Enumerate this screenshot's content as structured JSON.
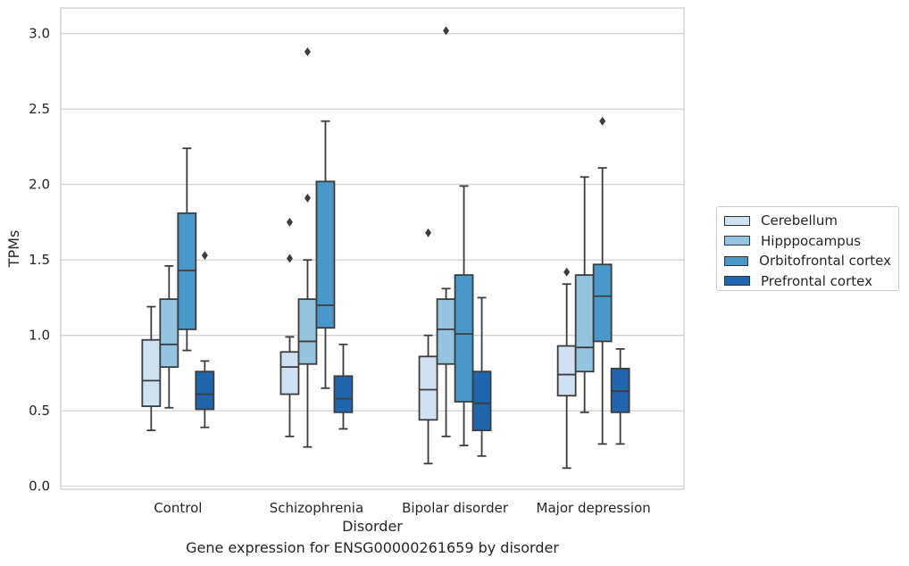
{
  "chart_data": {
    "type": "box",
    "title": "",
    "caption": "Gene expression for ENSG00000261659 by disorder",
    "xlabel": "Disorder",
    "ylabel": "TPMs",
    "ylim": [
      -0.02,
      3.17
    ],
    "yticks": [
      0.0,
      0.5,
      1.0,
      1.5,
      2.0,
      2.5,
      3.0
    ],
    "ytick_labels": [
      "0.0",
      "0.5",
      "1.0",
      "1.5",
      "2.0",
      "2.5",
      "3.0"
    ],
    "categories": [
      "Control",
      "Schizophrenia",
      "Bipolar disorder",
      "Major depression"
    ],
    "grid": "horizontal",
    "legend_position": "right",
    "series": [
      {
        "name": "Cerebellum",
        "color": "#d0e1f2",
        "boxes": [
          {
            "whisker_low": 0.37,
            "q1": 0.53,
            "median": 0.7,
            "q3": 0.97,
            "whisker_high": 1.19,
            "outliers": []
          },
          {
            "whisker_low": 0.33,
            "q1": 0.61,
            "median": 0.79,
            "q3": 0.89,
            "whisker_high": 0.99,
            "outliers": [
              1.51,
              1.75
            ]
          },
          {
            "whisker_low": 0.15,
            "q1": 0.44,
            "median": 0.64,
            "q3": 0.86,
            "whisker_high": 1.0,
            "outliers": [
              1.68
            ]
          },
          {
            "whisker_low": 0.12,
            "q1": 0.6,
            "median": 0.74,
            "q3": 0.93,
            "whisker_high": 1.34,
            "outliers": [
              1.42
            ]
          }
        ]
      },
      {
        "name": "Hipppocampus",
        "color": "#94c4df",
        "boxes": [
          {
            "whisker_low": 0.52,
            "q1": 0.79,
            "median": 0.94,
            "q3": 1.24,
            "whisker_high": 1.46,
            "outliers": []
          },
          {
            "whisker_low": 0.26,
            "q1": 0.81,
            "median": 0.96,
            "q3": 1.24,
            "whisker_high": 1.5,
            "outliers": [
              1.91,
              2.88
            ]
          },
          {
            "whisker_low": 0.33,
            "q1": 0.81,
            "median": 1.04,
            "q3": 1.24,
            "whisker_high": 1.31,
            "outliers": [
              3.02
            ]
          },
          {
            "whisker_low": 0.49,
            "q1": 0.76,
            "median": 0.92,
            "q3": 1.4,
            "whisker_high": 2.05,
            "outliers": []
          }
        ]
      },
      {
        "name": "Orbitofrontal cortex",
        "color": "#4a98c9",
        "boxes": [
          {
            "whisker_low": 0.9,
            "q1": 1.04,
            "median": 1.43,
            "q3": 1.81,
            "whisker_high": 2.24,
            "outliers": []
          },
          {
            "whisker_low": 0.65,
            "q1": 1.05,
            "median": 1.2,
            "q3": 2.02,
            "whisker_high": 2.42,
            "outliers": []
          },
          {
            "whisker_low": 0.27,
            "q1": 0.56,
            "median": 1.01,
            "q3": 1.4,
            "whisker_high": 1.99,
            "outliers": []
          },
          {
            "whisker_low": 0.28,
            "q1": 0.96,
            "median": 1.26,
            "q3": 1.47,
            "whisker_high": 2.11,
            "outliers": [
              2.42
            ]
          }
        ]
      },
      {
        "name": "Prefrontal cortex",
        "color": "#2166ac",
        "boxes": [
          {
            "whisker_low": 0.39,
            "q1": 0.51,
            "median": 0.61,
            "q3": 0.76,
            "whisker_high": 0.83,
            "outliers": [
              1.53
            ]
          },
          {
            "whisker_low": 0.38,
            "q1": 0.49,
            "median": 0.58,
            "q3": 0.73,
            "whisker_high": 0.94,
            "outliers": []
          },
          {
            "whisker_low": 0.2,
            "q1": 0.37,
            "median": 0.55,
            "q3": 0.76,
            "whisker_high": 1.25,
            "outliers": []
          },
          {
            "whisker_low": 0.28,
            "q1": 0.49,
            "median": 0.63,
            "q3": 0.78,
            "whisker_high": 0.91,
            "outliers": []
          }
        ]
      }
    ]
  }
}
